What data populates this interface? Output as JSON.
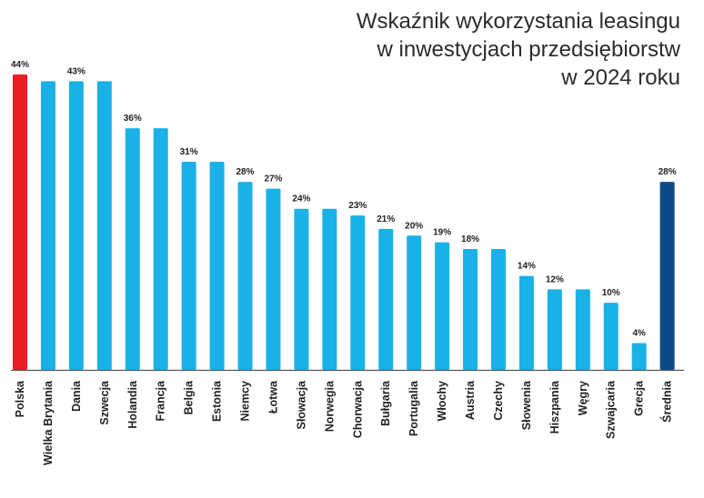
{
  "chart_data": {
    "type": "bar",
    "title_lines": [
      "Wskaźnik wykorzystania leasingu",
      "w inwestycjach przedsiębiorstw",
      "w 2024 roku"
    ],
    "categories": [
      "Polska",
      "Wielka Brytania",
      "Dania",
      "Szwecja",
      "Holandia",
      "Francja",
      "Belgia",
      "Estonia",
      "Niemcy",
      "Łotwa",
      "Słowacja",
      "Norwegia",
      "Chorwacja",
      "Bułgaria",
      "Portugalia",
      "Włochy",
      "Austria",
      "Czechy",
      "Słowenia",
      "Hiszpania",
      "Węgry",
      "Szwajcaria",
      "Grecja",
      "Średnia"
    ],
    "values": [
      44,
      43,
      43,
      43,
      36,
      36,
      31,
      31,
      28,
      27,
      24,
      24,
      23,
      21,
      20,
      19,
      18,
      18,
      14,
      12,
      12,
      10,
      4,
      28
    ],
    "value_labels": [
      "44%",
      "",
      "43%",
      "",
      "36%",
      "",
      "31%",
      "",
      "28%",
      "27%",
      "24%",
      "",
      "23%",
      "21%",
      "20%",
      "19%",
      "18%",
      "",
      "14%",
      "12%",
      "",
      "10%",
      "4%",
      "28%"
    ],
    "bar_colors": [
      "#ec1c24",
      "#1ab1e8",
      "#1ab1e8",
      "#1ab1e8",
      "#1ab1e8",
      "#1ab1e8",
      "#1ab1e8",
      "#1ab1e8",
      "#1ab1e8",
      "#1ab1e8",
      "#1ab1e8",
      "#1ab1e8",
      "#1ab1e8",
      "#1ab1e8",
      "#1ab1e8",
      "#1ab1e8",
      "#1ab1e8",
      "#1ab1e8",
      "#1ab1e8",
      "#1ab1e8",
      "#1ab1e8",
      "#1ab1e8",
      "#1ab1e8",
      "#0b4a86"
    ],
    "axis_color": "#555555",
    "ylim": [
      0,
      44
    ],
    "grid": false,
    "legend": "none"
  }
}
